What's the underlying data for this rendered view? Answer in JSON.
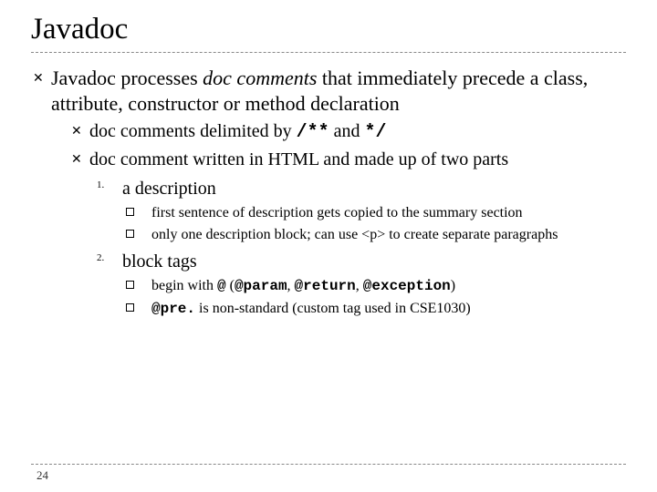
{
  "title": "Javadoc",
  "colors": {
    "text": "#000000",
    "bg": "#ffffff",
    "dash": "#888888"
  },
  "main": {
    "line1_a": "Javadoc processes ",
    "line1_b": "doc comments",
    "line1_c": " that immediately precede a class, attribute, constructor or method declaration"
  },
  "sub1": {
    "a": "doc comments delimited by ",
    "b": "/**",
    "c": " and ",
    "d": "*/"
  },
  "sub2": {
    "a": "doc comment written in HTML and made up of two parts"
  },
  "num1": {
    "marker": "1.",
    "text": "a description"
  },
  "num1_box1": {
    "text": "first sentence of description gets copied to the summary section"
  },
  "num1_box2": {
    "a": "only one description block; can use ",
    "b": "<p>",
    "c": " to create separate paragraphs"
  },
  "num2": {
    "marker": "2.",
    "text": "block tags"
  },
  "num2_box1": {
    "a": "begin with ",
    "b": "@",
    "c": " (",
    "d": "@param",
    "e": ", ",
    "f": "@return",
    "g": ", ",
    "h": "@exception",
    "i": ")"
  },
  "num2_box2": {
    "a": "@pre.",
    "b": " is non-standard (custom tag used in CSE1030)"
  },
  "page": "24"
}
